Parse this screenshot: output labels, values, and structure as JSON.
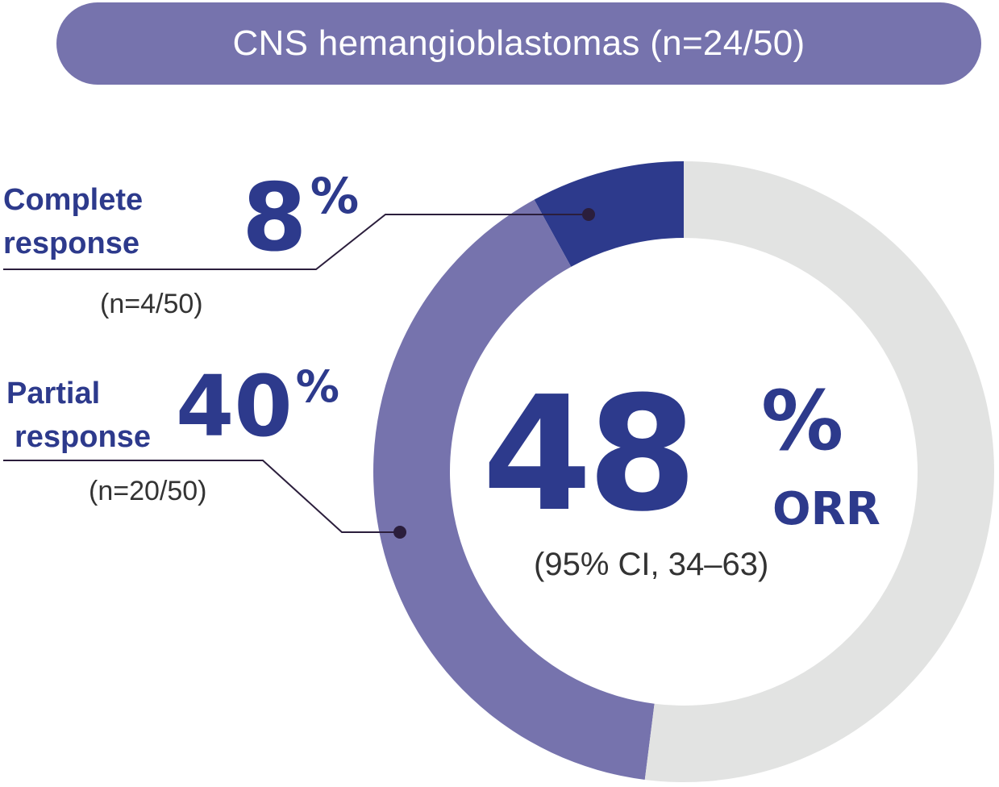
{
  "title": "CNS hemangioblastomas (n=24/50)",
  "colors": {
    "title_bg": "#7673ad",
    "complete": "#2d3a8c",
    "partial": "#7673ad",
    "remaining": "#e2e3e2",
    "leader": "#2b1e3c"
  },
  "chart_data": {
    "type": "pie",
    "total": 50,
    "slices": [
      {
        "name": "Complete response",
        "value": 4,
        "percent": 8
      },
      {
        "name": "Partial response",
        "value": 20,
        "percent": 40
      },
      {
        "name": "",
        "value": 26,
        "percent": 52
      }
    ],
    "center_value": "48",
    "center_unit": "%",
    "center_label": "ORR",
    "center_note": "(95% CI, 34–63)"
  },
  "labels": {
    "complete": {
      "line1": "Complete",
      "line2": "response",
      "percent": "8",
      "unit": "%",
      "count": "(n=4/50)"
    },
    "partial": {
      "line1": "Partial",
      "line2": "response",
      "percent": "40",
      "unit": "%",
      "count": "(n=20/50)"
    }
  }
}
